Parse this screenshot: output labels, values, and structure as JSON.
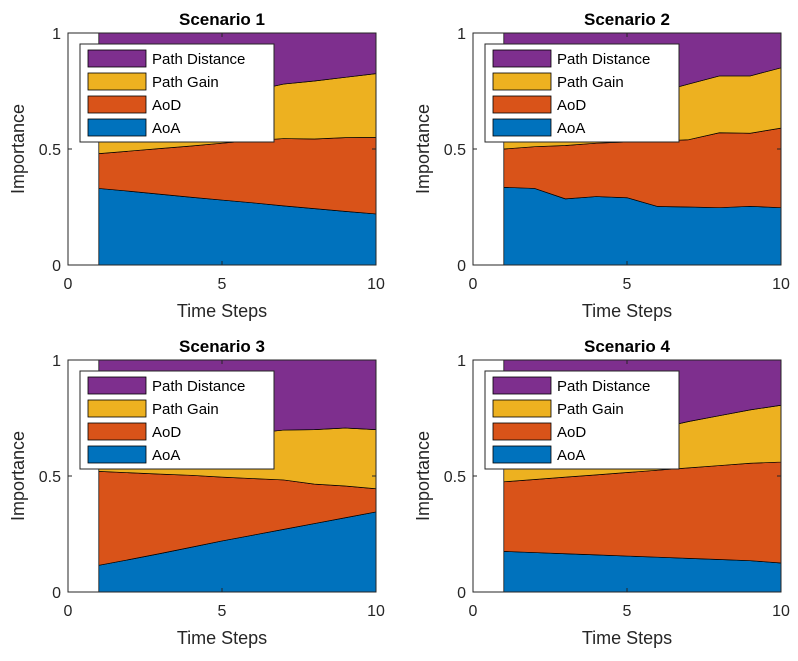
{
  "chart_data": [
    {
      "type": "area",
      "stacked": true,
      "title": "Scenario 1",
      "xlabel": "Time Steps",
      "ylabel": "Importance",
      "xlim": [
        0,
        10
      ],
      "ylim": [
        0,
        1
      ],
      "xticks": [
        "0",
        "5",
        "10"
      ],
      "yticks": [
        "0",
        "0.5",
        "1"
      ],
      "legend_position": "top-left",
      "x": [
        1,
        2,
        3,
        4,
        5,
        6,
        7,
        8,
        9,
        10
      ],
      "series": [
        {
          "name": "AoA",
          "color": "#0072BD",
          "values": [
            0.33,
            0.318,
            0.305,
            0.292,
            0.28,
            0.268,
            0.255,
            0.243,
            0.231,
            0.22
          ]
        },
        {
          "name": "AoD",
          "color": "#D95319",
          "values": [
            0.15,
            0.173,
            0.197,
            0.221,
            0.245,
            0.268,
            0.29,
            0.3,
            0.318,
            0.33
          ]
        },
        {
          "name": "Path Gain",
          "color": "#EDB120",
          "values": [
            0.16,
            0.17,
            0.18,
            0.19,
            0.205,
            0.215,
            0.235,
            0.25,
            0.26,
            0.275
          ]
        },
        {
          "name": "Path Distance",
          "color": "#7E2F8E",
          "values": [
            0.36,
            0.339,
            0.318,
            0.297,
            0.27,
            0.249,
            0.22,
            0.207,
            0.191,
            0.175
          ]
        }
      ]
    },
    {
      "type": "area",
      "stacked": true,
      "title": "Scenario 2",
      "xlabel": "Time Steps",
      "ylabel": "Importance",
      "xlim": [
        0,
        10
      ],
      "ylim": [
        0,
        1
      ],
      "xticks": [
        "0",
        "5",
        "10"
      ],
      "yticks": [
        "0",
        "0.5",
        "1"
      ],
      "legend_position": "top-left",
      "x": [
        1,
        2,
        3,
        4,
        5,
        6,
        7,
        8,
        9,
        10
      ],
      "series": [
        {
          "name": "AoA",
          "color": "#0072BD",
          "values": [
            0.335,
            0.33,
            0.285,
            0.295,
            0.29,
            0.252,
            0.25,
            0.247,
            0.253,
            0.247
          ]
        },
        {
          "name": "AoD",
          "color": "#D95319",
          "values": [
            0.165,
            0.18,
            0.23,
            0.23,
            0.24,
            0.282,
            0.29,
            0.323,
            0.315,
            0.343
          ]
        },
        {
          "name": "Path Gain",
          "color": "#EDB120",
          "values": [
            0.2,
            0.195,
            0.195,
            0.195,
            0.2,
            0.21,
            0.24,
            0.245,
            0.247,
            0.26
          ]
        },
        {
          "name": "Path Distance",
          "color": "#7E2F8E",
          "values": [
            0.3,
            0.295,
            0.29,
            0.28,
            0.27,
            0.256,
            0.22,
            0.185,
            0.185,
            0.15
          ]
        }
      ]
    },
    {
      "type": "area",
      "stacked": true,
      "title": "Scenario 3",
      "xlabel": "Time Steps",
      "ylabel": "Importance",
      "xlim": [
        0,
        10
      ],
      "ylim": [
        0,
        1
      ],
      "xticks": [
        "0",
        "5",
        "10"
      ],
      "yticks": [
        "0",
        "0.5",
        "1"
      ],
      "legend_position": "top-left",
      "x": [
        1,
        2,
        3,
        4,
        5,
        6,
        7,
        8,
        9,
        10
      ],
      "series": [
        {
          "name": "AoA",
          "color": "#0072BD",
          "values": [
            0.115,
            0.14,
            0.166,
            0.193,
            0.22,
            0.245,
            0.27,
            0.295,
            0.32,
            0.345
          ]
        },
        {
          "name": "AoD",
          "color": "#D95319",
          "values": [
            0.405,
            0.374,
            0.342,
            0.31,
            0.275,
            0.244,
            0.213,
            0.17,
            0.137,
            0.1
          ]
        },
        {
          "name": "Path Gain",
          "color": "#EDB120",
          "values": [
            0.1,
            0.117,
            0.13,
            0.15,
            0.175,
            0.195,
            0.215,
            0.235,
            0.25,
            0.255
          ]
        },
        {
          "name": "Path Distance",
          "color": "#7E2F8E",
          "values": [
            0.38,
            0.369,
            0.362,
            0.347,
            0.33,
            0.316,
            0.302,
            0.3,
            0.293,
            0.3
          ]
        }
      ]
    },
    {
      "type": "area",
      "stacked": true,
      "title": "Scenario 4",
      "xlabel": "Time Steps",
      "ylabel": "Importance",
      "xlim": [
        0,
        10
      ],
      "ylim": [
        0,
        1
      ],
      "xticks": [
        "0",
        "5",
        "10"
      ],
      "yticks": [
        "0",
        "0.5",
        "1"
      ],
      "legend_position": "top-left",
      "x": [
        1,
        2,
        3,
        4,
        5,
        6,
        7,
        8,
        9,
        10
      ],
      "series": [
        {
          "name": "AoA",
          "color": "#0072BD",
          "values": [
            0.175,
            0.17,
            0.165,
            0.16,
            0.155,
            0.15,
            0.145,
            0.14,
            0.135,
            0.125
          ]
        },
        {
          "name": "AoD",
          "color": "#D95319",
          "values": [
            0.3,
            0.315,
            0.33,
            0.345,
            0.36,
            0.375,
            0.39,
            0.405,
            0.42,
            0.435
          ]
        },
        {
          "name": "Path Gain",
          "color": "#EDB120",
          "values": [
            0.12,
            0.13,
            0.14,
            0.15,
            0.165,
            0.18,
            0.2,
            0.215,
            0.23,
            0.245
          ]
        },
        {
          "name": "Path Distance",
          "color": "#7E2F8E",
          "values": [
            0.405,
            0.385,
            0.365,
            0.345,
            0.32,
            0.295,
            0.265,
            0.24,
            0.215,
            0.195
          ]
        }
      ]
    }
  ]
}
